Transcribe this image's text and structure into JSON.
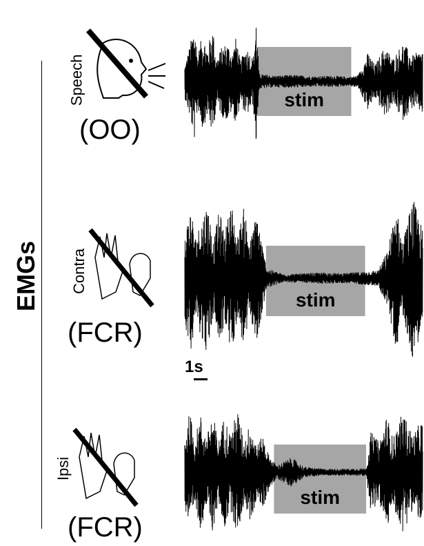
{
  "figure": {
    "side_title": "EMGs"
  },
  "panels": [
    {
      "muscle_label": "(OO)",
      "condition_label": "Speech",
      "icon": "speaking-face-icon",
      "stim_label": "stim"
    },
    {
      "muscle_label": "(FCR)",
      "condition_label": "Contra",
      "icon": "hand-gesture-icon",
      "stim_label": "stim"
    },
    {
      "muscle_label": "(FCR)",
      "condition_label": "Ipsi",
      "icon": "hand-gesture-icon",
      "stim_label": "stim"
    }
  ],
  "scale_bar": {
    "label": "1s",
    "value_s": 1
  },
  "colors": {
    "trace": "#000000",
    "stim_box": "#a6a6a6",
    "background": "#ffffff"
  },
  "chart_data": {
    "type": "line",
    "title": "",
    "xlabel": "",
    "ylabel": "EMGs",
    "grid": false,
    "legend": "none",
    "time_unit": "s",
    "xlim": [
      0,
      24
    ],
    "series": [
      {
        "name": "Speech (OO)",
        "stim_window_s": [
          7.3,
          16.8
        ],
        "envelope": [
          [
            0,
            0.25
          ],
          [
            0.5,
            0.55
          ],
          [
            1,
            0.9
          ],
          [
            1.3,
            0.4
          ],
          [
            1.8,
            0.75
          ],
          [
            2.3,
            0.5
          ],
          [
            2.8,
            0.85
          ],
          [
            3.2,
            0.35
          ],
          [
            3.8,
            0.55
          ],
          [
            4.3,
            0.6
          ],
          [
            4.8,
            0.45
          ],
          [
            5.2,
            0.7
          ],
          [
            5.6,
            0.3
          ],
          [
            6.2,
            0.55
          ],
          [
            6.9,
            0.35
          ],
          [
            7.2,
            1.0
          ],
          [
            7.5,
            0.12
          ],
          [
            9,
            0.09
          ],
          [
            11,
            0.1
          ],
          [
            13,
            0.08
          ],
          [
            15,
            0.09
          ],
          [
            16.5,
            0.07
          ],
          [
            17.5,
            0.1
          ],
          [
            18.5,
            0.45
          ],
          [
            19.2,
            0.25
          ],
          [
            20.2,
            0.55
          ],
          [
            21,
            0.35
          ],
          [
            22,
            0.6
          ],
          [
            23,
            0.4
          ],
          [
            24,
            0.5
          ]
        ]
      },
      {
        "name": "Contra (FCR)",
        "stim_window_s": [
          8.2,
          18.2
        ],
        "envelope": [
          [
            0,
            0.55
          ],
          [
            0.6,
            0.9
          ],
          [
            1.1,
            0.5
          ],
          [
            1.6,
            0.7
          ],
          [
            2.3,
            0.95
          ],
          [
            2.9,
            0.45
          ],
          [
            3.5,
            0.85
          ],
          [
            4,
            0.55
          ],
          [
            4.7,
            0.95
          ],
          [
            5.3,
            0.5
          ],
          [
            6,
            0.9
          ],
          [
            6.6,
            0.45
          ],
          [
            7.3,
            0.85
          ],
          [
            7.9,
            0.35
          ],
          [
            8.3,
            0.12
          ],
          [
            10,
            0.05
          ],
          [
            12,
            0.06
          ],
          [
            14,
            0.07
          ],
          [
            16,
            0.06
          ],
          [
            18,
            0.08
          ],
          [
            19.5,
            0.1
          ],
          [
            20.5,
            0.35
          ],
          [
            21.3,
            0.9
          ],
          [
            22,
            0.45
          ],
          [
            23,
            1.0
          ],
          [
            24,
            0.6
          ]
        ]
      },
      {
        "name": "Ipsi (FCR)",
        "stim_window_s": [
          9,
          18.3
        ],
        "envelope": [
          [
            0,
            0.55
          ],
          [
            0.5,
            0.9
          ],
          [
            1,
            0.5
          ],
          [
            1.6,
            0.85
          ],
          [
            2.2,
            0.5
          ],
          [
            2.8,
            0.9
          ],
          [
            3.4,
            0.45
          ],
          [
            4,
            0.85
          ],
          [
            4.6,
            0.55
          ],
          [
            5.3,
            0.95
          ],
          [
            6,
            0.45
          ],
          [
            6.6,
            0.75
          ],
          [
            7.3,
            0.4
          ],
          [
            7.9,
            0.55
          ],
          [
            8.5,
            0.25
          ],
          [
            9.3,
            0.1
          ],
          [
            10.8,
            0.22
          ],
          [
            12,
            0.08
          ],
          [
            14,
            0.05
          ],
          [
            16,
            0.05
          ],
          [
            18.3,
            0.06
          ],
          [
            18.8,
            0.6
          ],
          [
            19.6,
            0.45
          ],
          [
            20.4,
            0.85
          ],
          [
            21,
            0.5
          ],
          [
            22,
            0.9
          ],
          [
            23,
            0.55
          ],
          [
            24,
            0.8
          ]
        ]
      }
    ],
    "scale_bar": {
      "label": "1s",
      "duration_s": 1
    }
  }
}
